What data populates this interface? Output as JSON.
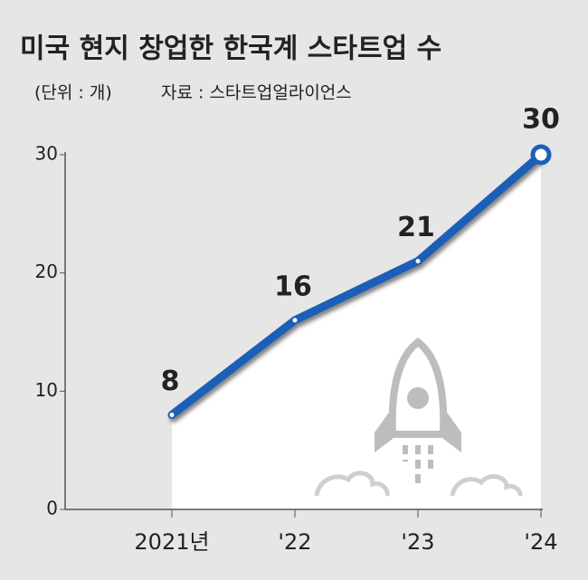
{
  "chart_data": {
    "type": "line",
    "title": "미국 현지 창업한 한국계 스타트업 수",
    "unit": "(단위 : 개)",
    "source": "자료 : 스타트업얼라이언스",
    "categories": [
      "2021년",
      "'22",
      "'23",
      "'24"
    ],
    "values": [
      8,
      16,
      21,
      30
    ],
    "color": "#1c5fb8",
    "ylim": [
      0,
      30
    ],
    "yticks": [
      0,
      10,
      20,
      30
    ]
  }
}
